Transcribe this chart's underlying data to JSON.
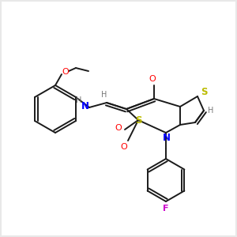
{
  "bg_color": "#e8e8e8",
  "bond_color": "#1a1a1a",
  "atom_colors": {
    "N": "#0000ff",
    "O": "#ff0000",
    "S": "#bbbb00",
    "F": "#cc00cc",
    "H": "#777777",
    "C": "#1a1a1a"
  },
  "figsize": [
    3.0,
    3.0
  ],
  "dpi": 100
}
